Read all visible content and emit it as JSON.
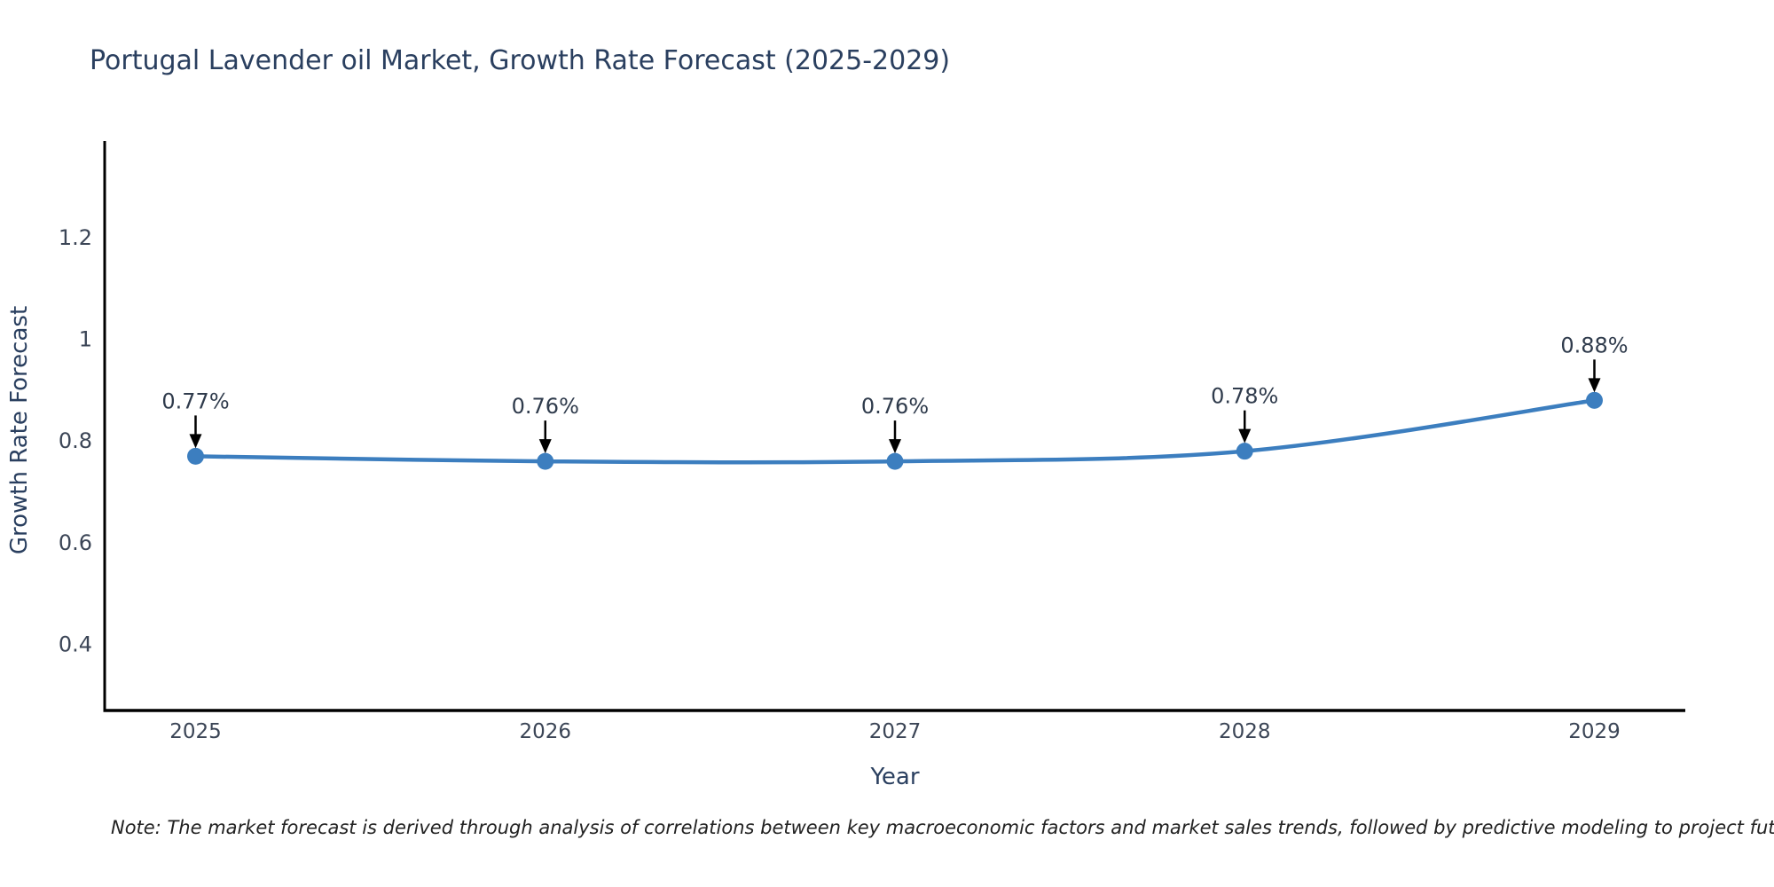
{
  "chart_data": {
    "type": "line",
    "title": "Portugal Lavender oil Market, Growth Rate Forecast (2025-2029)",
    "xlabel": "Year",
    "ylabel": "Growth Rate Forecast",
    "x": [
      2025,
      2026,
      2027,
      2028,
      2029
    ],
    "series": [
      {
        "name": "Growth Rate Forecast",
        "values": [
          0.77,
          0.76,
          0.76,
          0.78,
          0.88
        ],
        "point_labels": [
          "0.77%",
          "0.76%",
          "0.76%",
          "0.78%",
          "0.88%"
        ]
      }
    ],
    "xtick_labels": [
      "2025",
      "2026",
      "2027",
      "2028",
      "2029"
    ],
    "yticks": [
      0.4,
      0.6,
      0.8,
      1,
      1.2
    ],
    "ytick_labels": [
      "0.4",
      "0.6",
      "0.8",
      "1",
      "1.2"
    ],
    "xlim": [
      2024.74,
      2029.26
    ],
    "ylim": [
      0.27,
      1.39
    ],
    "grid": false,
    "legend": false,
    "line_shape": "spline",
    "colors": {
      "line": "#3c7ebf",
      "marker": "#3c7ebf",
      "axis_line": "#000000",
      "title_text": "#2a3f5f",
      "tick_text": "#3b4556",
      "annotation_text": "#2f3b4c",
      "annotation_arrow": "#000000",
      "note_text": "#222222",
      "background": "#ffffff"
    },
    "note": "Note: The market forecast is derived through analysis of correlations between key macroeconomic factors and market sales trends, followed by predictive modeling to project future sales"
  }
}
